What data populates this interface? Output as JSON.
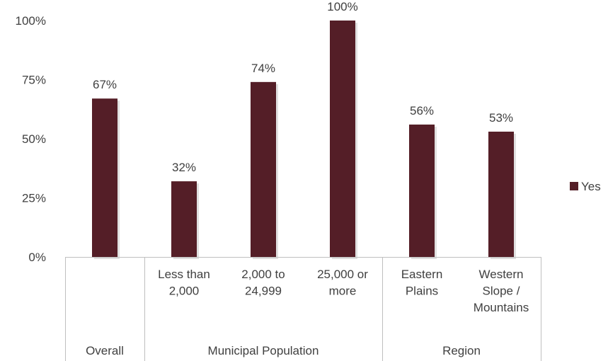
{
  "chart_data": {
    "type": "bar",
    "categories": [
      "Overall",
      "Less than 2,000",
      "2,000 to 24,999",
      "25,000 or more",
      "Eastern Plains",
      "Western Slope / Mountains"
    ],
    "category_lines": [
      [
        "Overall"
      ],
      [
        "Less than",
        "2,000"
      ],
      [
        "2,000 to",
        "24,999"
      ],
      [
        "25,000 or",
        "more"
      ],
      [
        "Eastern",
        "Plains"
      ],
      [
        "Western",
        "Slope /",
        "Mountains"
      ]
    ],
    "groups": [
      {
        "label": "Overall",
        "start": 0,
        "end": 0
      },
      {
        "label": "Municipal Population",
        "start": 1,
        "end": 3
      },
      {
        "label": "Region",
        "start": 4,
        "end": 5
      }
    ],
    "series": [
      {
        "name": "Yes",
        "values": [
          67,
          32,
          74,
          100,
          56,
          53
        ],
        "color": "#541e27"
      }
    ],
    "data_labels": [
      "67%",
      "32%",
      "74%",
      "100%",
      "56%",
      "53%"
    ],
    "y_ticks": [
      "0%",
      "25%",
      "50%",
      "75%",
      "100%"
    ],
    "ylim": [
      0,
      100
    ],
    "grid": false,
    "legend": {
      "position": "right",
      "entries": [
        "Yes"
      ]
    }
  }
}
